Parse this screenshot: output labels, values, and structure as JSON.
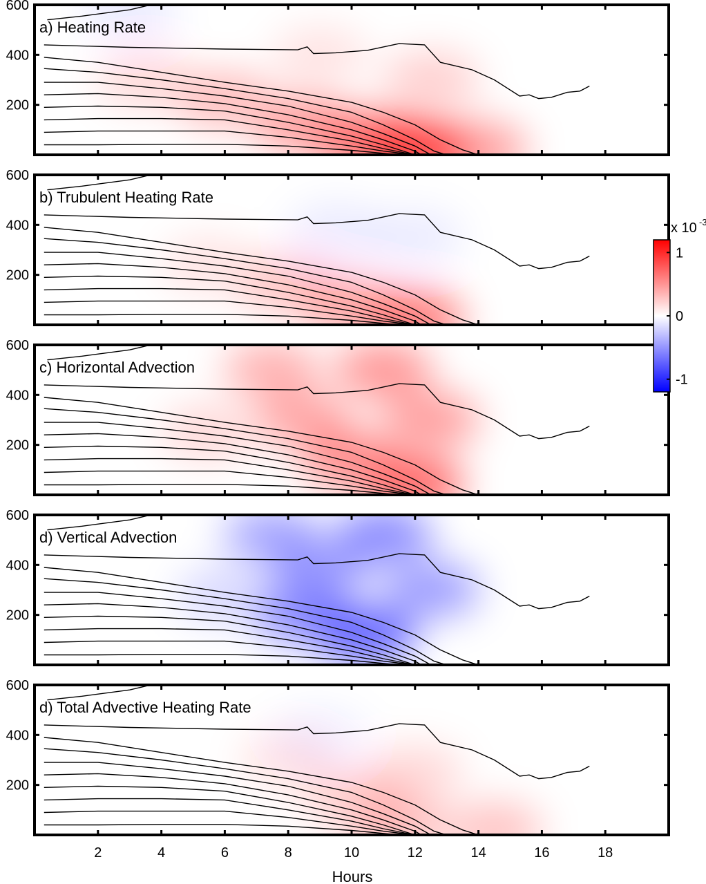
{
  "figure": {
    "xlabel": "Hours",
    "colorbar": {
      "exponent_label": "x 10",
      "exponent_sup": "-3",
      "ticks": [
        "1",
        "0",
        "-1"
      ],
      "range": [
        -1.2,
        1.2
      ],
      "colors": {
        "low": "#0000ff",
        "mid": "#ffffff",
        "high": "#ff0000"
      }
    }
  },
  "chart_data": [
    {
      "type": "heatmap",
      "title": "a) Heating Rate",
      "xlim": [
        0,
        20
      ],
      "ylim": [
        0,
        600
      ],
      "xticks": [
        "2",
        "4",
        "6",
        "8",
        "10",
        "12",
        "14",
        "16",
        "18"
      ],
      "yticks": [
        "200",
        "400",
        "600"
      ],
      "field": [
        {
          "x": 12.0,
          "y": 20,
          "value": 1.0
        },
        {
          "x": 10.5,
          "y": 60,
          "value": 0.7
        },
        {
          "x": 8.5,
          "y": 120,
          "value": 0.5
        },
        {
          "x": 6.0,
          "y": 220,
          "value": 0.35
        },
        {
          "x": 3.5,
          "y": 300,
          "value": 0.2
        },
        {
          "x": 14.0,
          "y": 20,
          "value": 0.5
        },
        {
          "x": 12.5,
          "y": 300,
          "value": 0.25
        },
        {
          "x": 9.0,
          "y": 400,
          "value": 0.15
        },
        {
          "x": 3.0,
          "y": 570,
          "value": -0.1
        }
      ]
    },
    {
      "type": "heatmap",
      "title": "b) Trubulent Heating Rate",
      "xlim": [
        0,
        20
      ],
      "ylim": [
        0,
        600
      ],
      "xticks": [
        "2",
        "4",
        "6",
        "8",
        "10",
        "12",
        "14",
        "16",
        "18"
      ],
      "yticks": [
        "200",
        "400",
        "600"
      ],
      "field": [
        {
          "x": 12.0,
          "y": 20,
          "value": 0.7
        },
        {
          "x": 10.0,
          "y": 80,
          "value": 0.45
        },
        {
          "x": 8.0,
          "y": 160,
          "value": 0.3
        },
        {
          "x": 5.5,
          "y": 240,
          "value": 0.15
        },
        {
          "x": 9.5,
          "y": 380,
          "value": -0.1
        },
        {
          "x": 12.0,
          "y": 350,
          "value": -0.1
        }
      ]
    },
    {
      "type": "heatmap",
      "title": "c) Horizontal Advection",
      "xlim": [
        0,
        20
      ],
      "ylim": [
        0,
        600
      ],
      "xticks": [
        "2",
        "4",
        "6",
        "8",
        "10",
        "12",
        "14",
        "16",
        "18"
      ],
      "yticks": [
        "200",
        "400",
        "600"
      ],
      "field": [
        {
          "x": 12.0,
          "y": 40,
          "value": 0.8
        },
        {
          "x": 10.0,
          "y": 140,
          "value": 0.6
        },
        {
          "x": 11.0,
          "y": 500,
          "value": 0.55
        },
        {
          "x": 7.5,
          "y": 500,
          "value": 0.4
        },
        {
          "x": 8.5,
          "y": 300,
          "value": 0.45
        },
        {
          "x": 12.5,
          "y": 300,
          "value": 0.5
        },
        {
          "x": 5.5,
          "y": 250,
          "value": 0.2
        }
      ]
    },
    {
      "type": "heatmap",
      "title": "d) Vertical Advection",
      "xlim": [
        0,
        20
      ],
      "ylim": [
        0,
        600
      ],
      "xticks": [
        "2",
        "4",
        "6",
        "8",
        "10",
        "12",
        "14",
        "16",
        "18"
      ],
      "yticks": [
        "200",
        "400",
        "600"
      ],
      "field": [
        {
          "x": 10.5,
          "y": 120,
          "value": -0.8
        },
        {
          "x": 8.5,
          "y": 200,
          "value": -0.6
        },
        {
          "x": 11.0,
          "y": 520,
          "value": -0.6
        },
        {
          "x": 7.5,
          "y": 520,
          "value": -0.45
        },
        {
          "x": 9.0,
          "y": 380,
          "value": -0.5
        },
        {
          "x": 12.5,
          "y": 300,
          "value": -0.5
        },
        {
          "x": 6.0,
          "y": 280,
          "value": -0.2
        }
      ]
    },
    {
      "type": "heatmap",
      "title": "d) Total Advective Heating Rate",
      "xlim": [
        0,
        20
      ],
      "ylim": [
        0,
        600
      ],
      "xticks": [
        "2",
        "4",
        "6",
        "8",
        "10",
        "12",
        "14",
        "16",
        "18"
      ],
      "yticks": [
        "200",
        "400",
        "600"
      ],
      "field": [
        {
          "x": 11.5,
          "y": 40,
          "value": 0.35
        },
        {
          "x": 10.0,
          "y": 150,
          "value": 0.25
        },
        {
          "x": 12.0,
          "y": 250,
          "value": 0.2
        },
        {
          "x": 14.5,
          "y": 20,
          "value": 0.3
        },
        {
          "x": 8.0,
          "y": 300,
          "value": 0.15
        },
        {
          "x": 9.0,
          "y": 400,
          "value": -0.08
        }
      ]
    }
  ],
  "contours": {
    "description_note": "",
    "lines": [
      [
        [
          0.3,
          440
        ],
        [
          3,
          430
        ],
        [
          6,
          423
        ],
        [
          8.3,
          420
        ],
        [
          8.6,
          432
        ],
        [
          8.8,
          405
        ],
        [
          9.5,
          408
        ],
        [
          10.5,
          418
        ],
        [
          11.5,
          445
        ],
        [
          12.3,
          440
        ],
        [
          12.8,
          370
        ],
        [
          13.8,
          340
        ],
        [
          14.5,
          300
        ],
        [
          15.3,
          235
        ],
        [
          15.6,
          240
        ],
        [
          15.9,
          225
        ],
        [
          16.3,
          230
        ],
        [
          16.8,
          250
        ],
        [
          17.2,
          255
        ],
        [
          17.5,
          275
        ]
      ],
      [
        [
          0.3,
          390
        ],
        [
          2,
          370
        ],
        [
          4,
          330
        ],
        [
          6,
          290
        ],
        [
          8,
          255
        ],
        [
          10,
          210
        ],
        [
          11,
          170
        ],
        [
          12,
          120
        ],
        [
          12.8,
          60
        ],
        [
          13.5,
          20
        ],
        [
          14,
          0
        ]
      ],
      [
        [
          0.3,
          345
        ],
        [
          2,
          330
        ],
        [
          4,
          300
        ],
        [
          6,
          265
        ],
        [
          8,
          225
        ],
        [
          10,
          170
        ],
        [
          11,
          120
        ],
        [
          12,
          60
        ],
        [
          12.6,
          15
        ],
        [
          13,
          0
        ]
      ],
      [
        [
          0.3,
          290
        ],
        [
          2,
          290
        ],
        [
          4,
          265
        ],
        [
          6,
          235
        ],
        [
          8,
          195
        ],
        [
          10,
          130
        ],
        [
          11,
          85
        ],
        [
          12,
          35
        ],
        [
          12.5,
          0
        ]
      ],
      [
        [
          0.3,
          240
        ],
        [
          2,
          245
        ],
        [
          4,
          230
        ],
        [
          6,
          205
        ],
        [
          8,
          160
        ],
        [
          10,
          100
        ],
        [
          11,
          60
        ],
        [
          12,
          15
        ],
        [
          12.2,
          0
        ]
      ],
      [
        [
          0.3,
          190
        ],
        [
          2,
          195
        ],
        [
          4,
          190
        ],
        [
          6,
          175
        ],
        [
          8,
          130
        ],
        [
          10,
          75
        ],
        [
          11,
          40
        ],
        [
          12,
          0
        ]
      ],
      [
        [
          0.3,
          140
        ],
        [
          2,
          145
        ],
        [
          4,
          145
        ],
        [
          6,
          140
        ],
        [
          8,
          100
        ],
        [
          10,
          55
        ],
        [
          11,
          25
        ],
        [
          12,
          0
        ]
      ],
      [
        [
          0.3,
          90
        ],
        [
          2,
          95
        ],
        [
          4,
          95
        ],
        [
          6,
          95
        ],
        [
          8,
          70
        ],
        [
          10,
          35
        ],
        [
          11,
          15
        ],
        [
          12,
          0
        ]
      ],
      [
        [
          0.3,
          40
        ],
        [
          2,
          40
        ],
        [
          4,
          42
        ],
        [
          6,
          42
        ],
        [
          8,
          35
        ],
        [
          10,
          18
        ],
        [
          11,
          6
        ],
        [
          11.5,
          0
        ]
      ],
      [
        [
          0.4,
          540
        ],
        [
          1.5,
          555
        ],
        [
          3,
          580
        ],
        [
          4,
          610
        ]
      ]
    ]
  }
}
